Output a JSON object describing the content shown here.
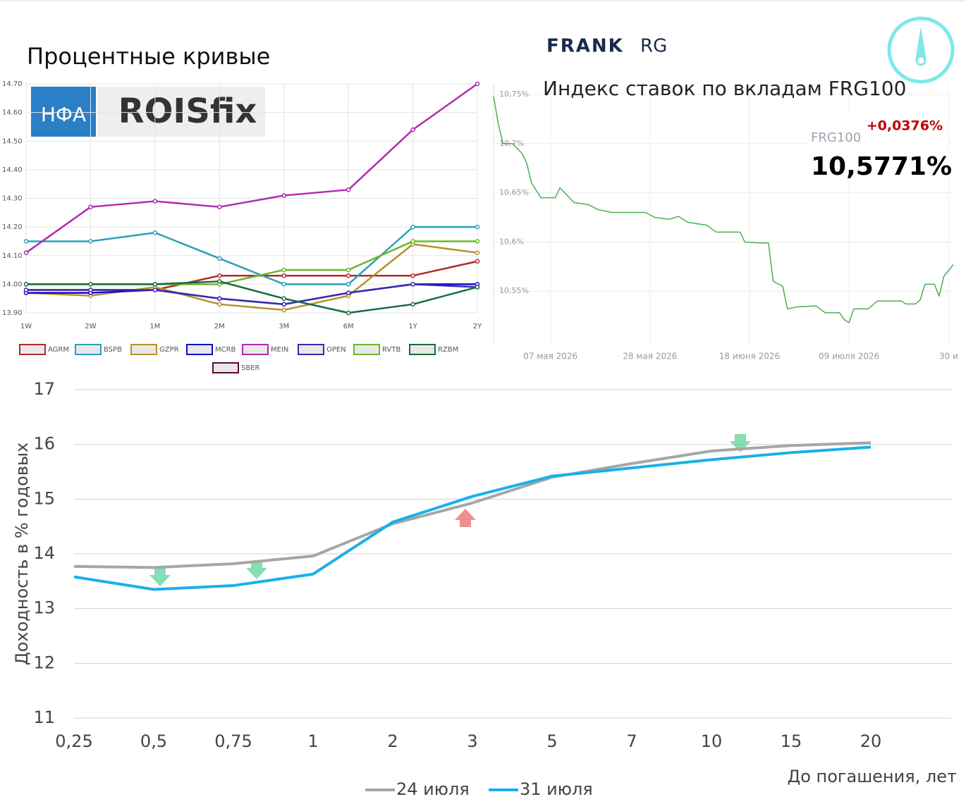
{
  "title": "Процентные кривые",
  "logos": {
    "nfa": "НФА",
    "roisfix": "ROISfix",
    "frank": "FRANK",
    "rg": "RG"
  },
  "chart_data": [
    {
      "type": "line",
      "categories": [
        "1W",
        "2W",
        "1M",
        "2M",
        "3M",
        "6M",
        "1Y",
        "2Y"
      ],
      "ylim": [
        13.9,
        14.7
      ],
      "yticks": [
        {
          "value": 13.9,
          "label": "13.90"
        },
        {
          "value": 14.0,
          "label": "14.00"
        },
        {
          "value": 14.1,
          "label": "14.10"
        },
        {
          "value": 14.2,
          "label": "14.20"
        },
        {
          "value": 14.3,
          "label": "14.30"
        },
        {
          "value": 14.4,
          "label": "14.40"
        },
        {
          "value": 14.5,
          "label": "14.50"
        },
        {
          "value": 14.6,
          "label": "14.60"
        },
        {
          "value": 14.7,
          "label": "14.70"
        }
      ],
      "grid": true,
      "series": [
        {
          "name": "AGRM",
          "color": "#b22a2a",
          "values": [
            13.98,
            13.98,
            13.98,
            14.03,
            14.03,
            14.03,
            14.03,
            14.08
          ]
        },
        {
          "name": "BSPB",
          "color": "#2aa0b8",
          "values": [
            14.15,
            14.15,
            14.18,
            14.09,
            14.0,
            14.0,
            14.2,
            14.2
          ]
        },
        {
          "name": "GZPR",
          "color": "#b8902a",
          "values": [
            13.97,
            13.96,
            13.99,
            13.93,
            13.91,
            13.96,
            14.14,
            14.11
          ]
        },
        {
          "name": "MCRB",
          "color": "#0a0ad0",
          "values": [
            13.97,
            13.97,
            13.98,
            13.95,
            13.93,
            13.97,
            14.0,
            14.0
          ]
        },
        {
          "name": "MEIN",
          "color": "#b02ab0",
          "values": [
            14.11,
            14.27,
            14.29,
            14.27,
            14.31,
            14.33,
            14.54,
            14.7
          ]
        },
        {
          "name": "OPEN",
          "color": "#3a2ab0",
          "values": [
            13.98,
            13.98,
            13.98,
            13.95,
            13.93,
            13.97,
            14.0,
            13.99
          ]
        },
        {
          "name": "RVTB",
          "color": "#6ab82a",
          "values": [
            14.0,
            14.0,
            14.0,
            14.0,
            14.05,
            14.05,
            14.15,
            14.15
          ]
        },
        {
          "name": "RZBM",
          "color": "#1a6a3a",
          "values": [
            14.0,
            14.0,
            14.0,
            14.01,
            13.95,
            13.9,
            13.93,
            13.99
          ]
        },
        {
          "name": "SBER",
          "color": "#5a0a3a",
          "values": [
            null,
            null,
            null,
            null,
            null,
            null,
            null,
            null
          ]
        }
      ]
    },
    {
      "type": "line",
      "title": "Индекс ставок по вкладам FRG100",
      "annotations": {
        "name": "FRG100",
        "change": "+0,0376%",
        "value": "10,5771%"
      },
      "color": "#4caf50",
      "x": [
        "2026-04-25",
        "2026-04-26",
        "2026-04-27",
        "2026-04-29",
        "2026-05-01",
        "2026-05-02",
        "2026-05-03",
        "2026-05-05",
        "2026-05-08",
        "2026-05-09",
        "2026-05-10",
        "2026-05-12",
        "2026-05-15",
        "2026-05-17",
        "2026-05-20",
        "2026-05-27",
        "2026-05-29",
        "2026-06-01",
        "2026-06-03",
        "2026-06-05",
        "2026-06-09",
        "2026-06-11",
        "2026-06-16",
        "2026-06-17",
        "2026-06-20",
        "2026-06-22",
        "2026-06-23",
        "2026-06-25",
        "2026-06-26",
        "2026-06-28",
        "2026-07-02",
        "2026-07-04",
        "2026-07-07",
        "2026-07-08",
        "2026-07-09",
        "2026-07-10",
        "2026-07-13",
        "2026-07-15",
        "2026-07-20",
        "2026-07-21",
        "2026-07-23",
        "2026-07-24",
        "2026-07-25",
        "2026-07-27",
        "2026-07-28",
        "2026-07-29",
        "2026-07-31"
      ],
      "values": [
        10.748,
        10.72,
        10.7,
        10.7,
        10.69,
        10.68,
        10.66,
        10.645,
        10.645,
        10.655,
        10.65,
        10.64,
        10.638,
        10.633,
        10.63,
        10.63,
        10.625,
        10.623,
        10.626,
        10.62,
        10.617,
        10.61,
        10.61,
        10.6,
        10.599,
        10.599,
        10.56,
        10.555,
        10.532,
        10.534,
        10.535,
        10.528,
        10.528,
        10.521,
        10.518,
        10.532,
        10.532,
        10.54,
        10.54,
        10.537,
        10.537,
        10.541,
        10.557,
        10.557,
        10.545,
        10.565,
        10.577
      ],
      "xlim": [
        "2026-04-25",
        "2026-07-31"
      ],
      "xticks": [
        {
          "value": "2026-05-07",
          "label": "07 мая 2026"
        },
        {
          "value": "2026-05-28",
          "label": "28 мая 2026"
        },
        {
          "value": "2026-06-18",
          "label": "18 июня 2026"
        },
        {
          "value": "2026-07-09",
          "label": "09 июля 2026"
        },
        {
          "value": "2026-07-30",
          "label": "30 и"
        }
      ],
      "ylim": [
        10.495,
        10.76
      ],
      "yticks": [
        {
          "value": 10.55,
          "label": "10,55%"
        },
        {
          "value": 10.6,
          "label": "10,6%"
        },
        {
          "value": 10.65,
          "label": "10,65%"
        },
        {
          "value": 10.7,
          "label": "10,7%"
        },
        {
          "value": 10.75,
          "label": "10,75%"
        }
      ],
      "grid": true
    },
    {
      "type": "line",
      "y_label": "Доходность в % годовых",
      "x_label": "До погашения, лет",
      "categories": [
        "0,25",
        "0,5",
        "0,75",
        "1",
        "2",
        "3",
        "5",
        "7",
        "10",
        "15",
        "20"
      ],
      "ylim": [
        11,
        17
      ],
      "yticks": [
        11,
        12,
        13,
        14,
        15,
        16,
        17
      ],
      "grid": true,
      "series": [
        {
          "name": "24 июля",
          "color": "#a6a6a6",
          "values": [
            13.77,
            13.75,
            13.82,
            13.96,
            14.55,
            14.93,
            15.4,
            15.65,
            15.88,
            15.98,
            16.03
          ]
        },
        {
          "name": "31 июля",
          "color": "#1ab0e8",
          "values": [
            13.58,
            13.35,
            13.42,
            13.63,
            14.58,
            15.05,
            15.42,
            15.57,
            15.72,
            15.85,
            15.95
          ]
        }
      ]
    }
  ]
}
